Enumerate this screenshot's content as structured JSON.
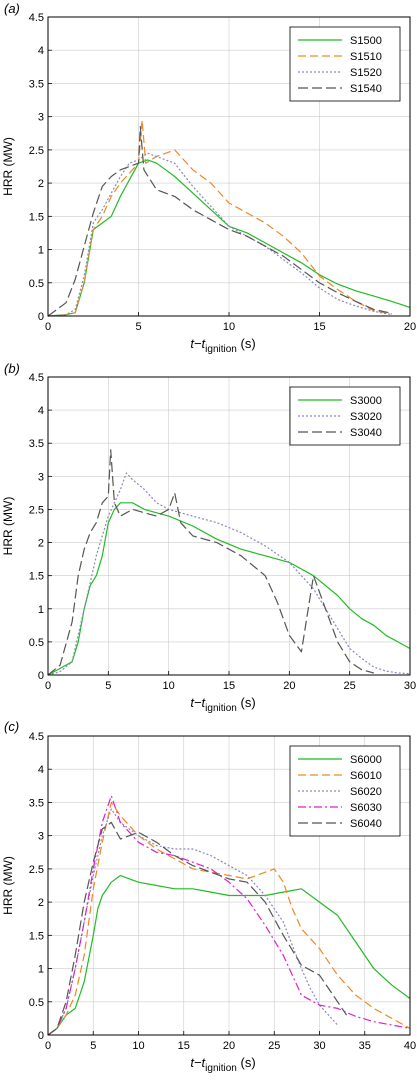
{
  "chart_data": [
    {
      "type": "line",
      "panel_label": "(a)",
      "xlabel": "t−t",
      "xlabel_sub": "ignition",
      "xlabel_unit": " (s)",
      "ylabel": "HRR (MW)",
      "xlim": [
        0,
        20
      ],
      "ylim": [
        0,
        4.5
      ],
      "xticks": [
        0,
        5,
        10,
        15,
        20
      ],
      "yticks": [
        0,
        0.5,
        1,
        1.5,
        2,
        2.5,
        3,
        3.5,
        4,
        4.5
      ],
      "grid": true,
      "legend": "top-right",
      "series": [
        {
          "name": "S1500",
          "color": "#22bb22",
          "dash": "solid",
          "x": [
            0,
            1,
            1.5,
            2,
            2.5,
            3,
            3.5,
            4,
            4.5,
            5,
            5.5,
            6,
            6.5,
            7,
            8,
            9,
            10,
            11,
            12,
            13,
            14,
            15,
            16,
            17,
            18,
            19,
            20
          ],
          "y": [
            0,
            0.02,
            0.05,
            0.5,
            1.3,
            1.4,
            1.5,
            1.8,
            2.05,
            2.3,
            2.35,
            2.3,
            2.2,
            2.1,
            1.85,
            1.6,
            1.35,
            1.25,
            1.1,
            0.95,
            0.8,
            0.62,
            0.48,
            0.38,
            0.3,
            0.22,
            0.13
          ]
        },
        {
          "name": "S1510",
          "color": "#ee8822",
          "dash": "8,4",
          "x": [
            0,
            1,
            1.5,
            2,
            2.5,
            3,
            3.5,
            4,
            4.5,
            5,
            5.2,
            5.4,
            6,
            7,
            8,
            9,
            10,
            11,
            12,
            13,
            14,
            15,
            16,
            17,
            18,
            19
          ],
          "y": [
            0,
            0.02,
            0.05,
            0.5,
            1.3,
            1.5,
            1.8,
            2.0,
            2.15,
            2.3,
            2.95,
            2.3,
            2.4,
            2.5,
            2.2,
            2.0,
            1.7,
            1.55,
            1.4,
            1.2,
            0.95,
            0.6,
            0.4,
            0.22,
            0.08,
            0.03
          ]
        },
        {
          "name": "S1520",
          "color": "#8888bb",
          "dash": "2,2",
          "x": [
            0,
            1,
            1.5,
            2,
            2.5,
            3,
            3.5,
            4,
            4.5,
            5,
            5.5,
            6,
            7,
            8,
            9,
            10,
            11,
            12,
            13,
            14,
            15,
            16,
            17,
            18,
            19
          ],
          "y": [
            0,
            0.02,
            0.1,
            0.6,
            1.4,
            1.6,
            1.85,
            2.1,
            2.3,
            2.35,
            2.45,
            2.4,
            2.3,
            1.95,
            1.65,
            1.35,
            1.2,
            1.05,
            0.85,
            0.65,
            0.42,
            0.25,
            0.15,
            0.07,
            0.02
          ]
        },
        {
          "name": "S1540",
          "color": "#555555",
          "dash": "10,4",
          "x": [
            0,
            0.5,
            1,
            1.5,
            2,
            2.5,
            3,
            3.5,
            4,
            4.5,
            5,
            5.1,
            5.3,
            6,
            7,
            8,
            9,
            10,
            11,
            12,
            13,
            14,
            15,
            16,
            17,
            18,
            19
          ],
          "y": [
            0,
            0.1,
            0.2,
            0.55,
            1.05,
            1.55,
            1.95,
            2.1,
            2.2,
            2.25,
            2.3,
            2.85,
            2.2,
            1.9,
            1.8,
            1.6,
            1.45,
            1.3,
            1.2,
            1.05,
            0.9,
            0.7,
            0.5,
            0.35,
            0.22,
            0.1,
            0.04
          ]
        }
      ]
    },
    {
      "type": "line",
      "panel_label": "(b)",
      "xlabel": "t−t",
      "xlabel_sub": "ignition",
      "xlabel_unit": " (s)",
      "ylabel": "HRR (MW)",
      "xlim": [
        0,
        30
      ],
      "ylim": [
        0,
        4.5
      ],
      "xticks": [
        0,
        5,
        10,
        15,
        20,
        25,
        30
      ],
      "yticks": [
        0,
        0.5,
        1,
        1.5,
        2,
        2.5,
        3,
        3.5,
        4,
        4.5
      ],
      "grid": true,
      "legend": "top-right",
      "series": [
        {
          "name": "S3000",
          "color": "#22bb22",
          "dash": "solid",
          "x": [
            0,
            1,
            2,
            2.5,
            3,
            3.5,
            4,
            4.5,
            5,
            5.5,
            6,
            7,
            8,
            9,
            10,
            12,
            14,
            16,
            18,
            20,
            22,
            24,
            25,
            26,
            27,
            28,
            29,
            30
          ],
          "y": [
            0,
            0.1,
            0.2,
            0.5,
            1.0,
            1.35,
            1.5,
            1.8,
            2.3,
            2.5,
            2.6,
            2.6,
            2.5,
            2.45,
            2.4,
            2.25,
            2.05,
            1.9,
            1.8,
            1.7,
            1.5,
            1.2,
            1.0,
            0.85,
            0.75,
            0.6,
            0.5,
            0.4
          ]
        },
        {
          "name": "S3020",
          "color": "#8888bb",
          "dash": "2,2",
          "x": [
            0,
            1,
            2,
            3,
            4,
            5,
            6,
            6.5,
            7,
            8,
            9,
            10,
            12,
            14,
            16,
            18,
            20,
            22,
            24,
            25,
            26,
            27,
            28,
            29,
            30
          ],
          "y": [
            0,
            0.05,
            0.2,
            1.0,
            1.8,
            2.4,
            2.8,
            3.05,
            2.95,
            2.8,
            2.6,
            2.5,
            2.4,
            2.3,
            2.15,
            1.95,
            1.7,
            1.3,
            0.7,
            0.4,
            0.25,
            0.12,
            0.06,
            0.03,
            0.02
          ]
        },
        {
          "name": "S3040",
          "color": "#555555",
          "dash": "10,4",
          "x": [
            0,
            1,
            2,
            2.5,
            3,
            3.5,
            4,
            4.5,
            5,
            5.2,
            5.5,
            6,
            7,
            8,
            9,
            10,
            10.5,
            11,
            12,
            14,
            16,
            18,
            19,
            20,
            21,
            22,
            23,
            24,
            25,
            26,
            27
          ],
          "y": [
            0,
            0.15,
            0.8,
            1.5,
            1.9,
            2.15,
            2.3,
            2.6,
            2.7,
            3.4,
            2.6,
            2.4,
            2.5,
            2.45,
            2.4,
            2.5,
            2.75,
            2.3,
            2.1,
            2.0,
            1.8,
            1.5,
            1.1,
            0.6,
            0.35,
            1.5,
            1.0,
            0.5,
            0.2,
            0.08,
            0.03
          ]
        }
      ]
    },
    {
      "type": "line",
      "panel_label": "(c)",
      "xlabel": "t−t",
      "xlabel_sub": "ignition",
      "xlabel_unit": " (s)",
      "ylabel": "HRR (MW)",
      "xlim": [
        0,
        40
      ],
      "ylim": [
        0,
        4.5
      ],
      "xticks": [
        0,
        5,
        10,
        15,
        20,
        25,
        30,
        35,
        40
      ],
      "yticks": [
        0,
        0.5,
        1,
        1.5,
        2,
        2.5,
        3,
        3.5,
        4,
        4.5
      ],
      "grid": true,
      "legend": "top-right",
      "series": [
        {
          "name": "S6000",
          "color": "#22bb22",
          "dash": "solid",
          "x": [
            0,
            1,
            2,
            3,
            4,
            5,
            5.5,
            6,
            7,
            8,
            9,
            10,
            12,
            14,
            16,
            18,
            20,
            22,
            24,
            26,
            28,
            30,
            32,
            34,
            36,
            38,
            40
          ],
          "y": [
            0,
            0.1,
            0.3,
            0.4,
            0.8,
            1.5,
            1.9,
            2.1,
            2.3,
            2.4,
            2.35,
            2.3,
            2.25,
            2.2,
            2.2,
            2.15,
            2.1,
            2.1,
            2.1,
            2.15,
            2.2,
            2.0,
            1.8,
            1.4,
            1.0,
            0.75,
            0.55
          ]
        },
        {
          "name": "S6010",
          "color": "#ee8822",
          "dash": "8,4",
          "x": [
            0,
            1,
            2,
            3,
            4,
            5,
            6,
            7,
            8,
            10,
            12,
            14,
            16,
            18,
            20,
            22,
            24,
            25,
            26,
            27,
            28,
            30,
            32,
            34,
            36,
            38,
            40
          ],
          "y": [
            0,
            0.1,
            0.3,
            0.6,
            1.2,
            2.2,
            2.9,
            3.5,
            3.3,
            3.0,
            2.8,
            2.65,
            2.5,
            2.45,
            2.4,
            2.35,
            2.45,
            2.5,
            2.3,
            1.9,
            1.6,
            1.3,
            0.9,
            0.6,
            0.4,
            0.25,
            0.1
          ]
        },
        {
          "name": "S6020",
          "color": "#8888bb",
          "dash": "2,2",
          "x": [
            0,
            1,
            2,
            3,
            4,
            5,
            6,
            7,
            8,
            10,
            12,
            14,
            16,
            18,
            20,
            22,
            24,
            26,
            28,
            29,
            30,
            31,
            32
          ],
          "y": [
            0,
            0.1,
            0.4,
            1.0,
            1.7,
            2.4,
            3.0,
            3.4,
            3.2,
            3.0,
            2.85,
            2.8,
            2.8,
            2.7,
            2.55,
            2.4,
            2.1,
            1.7,
            1.0,
            0.7,
            0.45,
            0.3,
            0.15
          ]
        },
        {
          "name": "S6030",
          "color": "#dd22cc",
          "dash": "8,3,2,3",
          "x": [
            0,
            1,
            2,
            3,
            4,
            5,
            6,
            7,
            8,
            10,
            12,
            14,
            16,
            18,
            20,
            22,
            24,
            26,
            28,
            30,
            32,
            34,
            36,
            38,
            40
          ],
          "y": [
            0,
            0.1,
            0.4,
            1.0,
            1.7,
            2.5,
            3.2,
            3.6,
            3.2,
            2.9,
            2.75,
            2.7,
            2.6,
            2.5,
            2.3,
            2.05,
            1.65,
            1.2,
            0.6,
            0.45,
            0.4,
            0.28,
            0.2,
            0.15,
            0.1
          ]
        },
        {
          "name": "S6040",
          "color": "#555555",
          "dash": "10,4",
          "x": [
            0,
            1,
            2,
            3,
            4,
            5,
            6,
            7,
            8,
            10,
            12,
            14,
            16,
            18,
            20,
            22,
            24,
            26,
            28,
            30,
            31,
            32,
            33
          ],
          "y": [
            0,
            0.1,
            0.5,
            1.2,
            2.0,
            2.6,
            3.1,
            3.2,
            2.95,
            3.05,
            2.9,
            2.7,
            2.55,
            2.45,
            2.35,
            2.3,
            2.0,
            1.5,
            1.05,
            0.9,
            0.7,
            0.5,
            0.3
          ]
        }
      ]
    }
  ]
}
